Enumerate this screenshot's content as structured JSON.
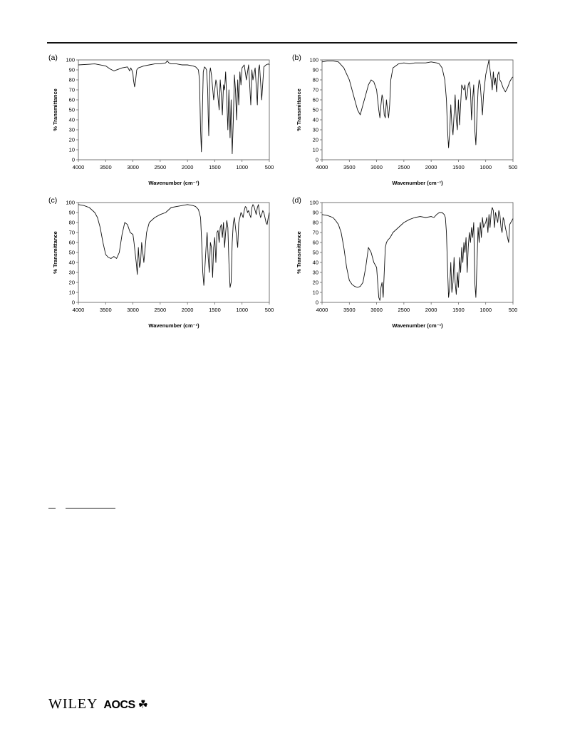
{
  "footer": {
    "publisher": "WILEY",
    "society": "AOCS",
    "society_symbol": "☘"
  },
  "chart_data": [
    {
      "type": "line",
      "panel": "(a)",
      "xlabel": "Wavenumber (cm⁻¹)",
      "ylabel": "% Transmittance",
      "xlim": [
        4000,
        500
      ],
      "ylim": [
        0,
        100
      ],
      "x_reversed": true,
      "xticks": [
        4000,
        3500,
        3000,
        2500,
        2000,
        1500,
        1000,
        500
      ],
      "yticks": [
        0,
        10,
        20,
        30,
        40,
        50,
        60,
        70,
        80,
        90,
        100
      ],
      "grid": false,
      "legend": "none",
      "series": [
        {
          "x": [
            4000,
            3700,
            3500,
            3420,
            3350,
            3200,
            3100,
            3060,
            3040,
            3020,
            3000,
            2990,
            2970,
            2950,
            2930,
            2900,
            2850,
            2800,
            2700,
            2600,
            2500,
            2400,
            2370,
            2340,
            2300,
            2200,
            2100,
            2000,
            1900,
            1850,
            1800,
            1780,
            1760,
            1745,
            1730,
            1710,
            1690,
            1670,
            1650,
            1630,
            1620,
            1610,
            1600,
            1590,
            1580,
            1560,
            1520,
            1500,
            1480,
            1460,
            1440,
            1420,
            1400,
            1380,
            1360,
            1340,
            1320,
            1300,
            1280,
            1260,
            1240,
            1220,
            1200,
            1180,
            1160,
            1140,
            1120,
            1100,
            1080,
            1060,
            1040,
            1020,
            1000,
            960,
            920,
            880,
            840,
            820,
            800,
            760,
            720,
            700,
            680,
            640,
            600,
            560,
            520,
            500
          ],
          "y": [
            95,
            96,
            94,
            91,
            89,
            92,
            93,
            89,
            92,
            90,
            86,
            80,
            73,
            80,
            90,
            92,
            93,
            94,
            95,
            96,
            96,
            97,
            99,
            97,
            96,
            96,
            95,
            95,
            94,
            93,
            90,
            80,
            30,
            8,
            40,
            88,
            93,
            92,
            90,
            70,
            45,
            24,
            60,
            88,
            92,
            85,
            60,
            70,
            80,
            75,
            62,
            50,
            80,
            65,
            45,
            75,
            70,
            88,
            60,
            30,
            70,
            22,
            60,
            6,
            40,
            85,
            70,
            40,
            80,
            55,
            88,
            75,
            92,
            95,
            80,
            95,
            55,
            90,
            80,
            92,
            55,
            90,
            95,
            60,
            93,
            95,
            96,
            95
          ]
        }
      ]
    },
    {
      "type": "line",
      "panel": "(b)",
      "xlabel": "Wavenumber (cm⁻¹)",
      "ylabel": "% Transmittance",
      "xlim": [
        4000,
        500
      ],
      "ylim": [
        0,
        100
      ],
      "x_reversed": true,
      "xticks": [
        4000,
        3500,
        3000,
        2500,
        2000,
        1500,
        1000,
        500
      ],
      "yticks": [
        0,
        10,
        20,
        30,
        40,
        50,
        60,
        70,
        80,
        90,
        100
      ],
      "grid": false,
      "legend": "none",
      "series": [
        {
          "x": [
            4000,
            3900,
            3800,
            3700,
            3600,
            3500,
            3450,
            3400,
            3350,
            3300,
            3250,
            3200,
            3150,
            3100,
            3050,
            3000,
            2980,
            2960,
            2940,
            2920,
            2900,
            2880,
            2860,
            2840,
            2820,
            2800,
            2780,
            2760,
            2740,
            2700,
            2600,
            2500,
            2400,
            2300,
            2200,
            2100,
            2000,
            1900,
            1850,
            1800,
            1750,
            1720,
            1700,
            1680,
            1660,
            1640,
            1620,
            1600,
            1580,
            1560,
            1540,
            1520,
            1500,
            1480,
            1460,
            1440,
            1420,
            1400,
            1380,
            1360,
            1340,
            1320,
            1300,
            1280,
            1260,
            1240,
            1220,
            1200,
            1180,
            1160,
            1140,
            1120,
            1100,
            1080,
            1060,
            1040,
            1020,
            1000,
            980,
            960,
            940,
            920,
            900,
            880,
            860,
            840,
            820,
            800,
            780,
            760,
            740,
            720,
            700,
            680,
            660,
            640,
            620,
            600,
            580,
            560,
            540,
            520,
            500
          ],
          "y": [
            98,
            99,
            99,
            98,
            92,
            80,
            70,
            60,
            50,
            45,
            55,
            65,
            75,
            80,
            78,
            70,
            60,
            50,
            42,
            55,
            65,
            60,
            45,
            42,
            60,
            50,
            42,
            55,
            80,
            92,
            96,
            97,
            96,
            97,
            97,
            97,
            98,
            97,
            96,
            92,
            80,
            60,
            30,
            12,
            28,
            55,
            35,
            25,
            45,
            65,
            40,
            30,
            60,
            35,
            55,
            75,
            72,
            70,
            75,
            60,
            65,
            75,
            78,
            70,
            40,
            60,
            75,
            30,
            15,
            45,
            70,
            80,
            75,
            60,
            45,
            65,
            75,
            85,
            90,
            95,
            100,
            90,
            80,
            70,
            88,
            75,
            82,
            68,
            85,
            88,
            80,
            78,
            75,
            72,
            70,
            68,
            70,
            72,
            75,
            78,
            80,
            82,
            83
          ]
        }
      ]
    },
    {
      "type": "line",
      "panel": "(c)",
      "xlabel": "Wavenumber (cm⁻¹)",
      "ylabel": "% Transmittance",
      "xlim": [
        4000,
        500
      ],
      "ylim": [
        0,
        100
      ],
      "x_reversed": true,
      "xticks": [
        4000,
        3500,
        3000,
        2500,
        2000,
        1500,
        1000,
        500
      ],
      "yticks": [
        0,
        10,
        20,
        30,
        40,
        50,
        60,
        70,
        80,
        90,
        100
      ],
      "grid": false,
      "legend": "none",
      "series": [
        {
          "x": [
            4000,
            3900,
            3800,
            3700,
            3650,
            3600,
            3550,
            3500,
            3450,
            3400,
            3350,
            3300,
            3250,
            3200,
            3150,
            3100,
            3050,
            3000,
            2980,
            2960,
            2940,
            2920,
            2900,
            2880,
            2860,
            2840,
            2820,
            2800,
            2750,
            2700,
            2600,
            2500,
            2400,
            2300,
            2200,
            2100,
            2000,
            1900,
            1850,
            1800,
            1760,
            1740,
            1720,
            1700,
            1680,
            1660,
            1640,
            1620,
            1600,
            1580,
            1560,
            1540,
            1520,
            1500,
            1480,
            1460,
            1440,
            1420,
            1400,
            1380,
            1360,
            1340,
            1320,
            1300,
            1280,
            1260,
            1240,
            1220,
            1200,
            1180,
            1160,
            1140,
            1120,
            1100,
            1080,
            1060,
            1040,
            1020,
            1000,
            980,
            960,
            940,
            920,
            900,
            880,
            860,
            840,
            820,
            800,
            780,
            760,
            740,
            720,
            700,
            680,
            660,
            640,
            620,
            600,
            580,
            560,
            540,
            520,
            500
          ],
          "y": [
            98,
            97,
            95,
            90,
            85,
            75,
            60,
            48,
            45,
            44,
            46,
            44,
            50,
            68,
            80,
            78,
            70,
            68,
            60,
            50,
            40,
            28,
            55,
            35,
            40,
            60,
            50,
            40,
            70,
            80,
            85,
            88,
            90,
            95,
            96,
            97,
            98,
            97,
            96,
            93,
            85,
            60,
            30,
            17,
            35,
            55,
            70,
            45,
            30,
            60,
            55,
            25,
            55,
            65,
            40,
            70,
            72,
            60,
            75,
            78,
            65,
            80,
            55,
            70,
            82,
            75,
            40,
            15,
            20,
            60,
            80,
            85,
            75,
            65,
            55,
            80,
            85,
            90,
            88,
            85,
            92,
            96,
            95,
            90,
            92,
            88,
            85,
            95,
            98,
            96,
            92,
            88,
            95,
            98,
            90,
            85,
            88,
            92,
            90,
            85,
            80,
            78,
            85,
            90
          ]
        }
      ]
    },
    {
      "type": "line",
      "panel": "(d)",
      "xlabel": "Wavenumber (cm⁻¹)",
      "ylabel": "% Transmittance",
      "xlim": [
        4000,
        500
      ],
      "ylim": [
        0,
        100
      ],
      "x_reversed": true,
      "xticks": [
        4000,
        3500,
        3000,
        2500,
        2000,
        1500,
        1000,
        500
      ],
      "yticks": [
        0,
        10,
        20,
        30,
        40,
        50,
        60,
        70,
        80,
        90,
        100
      ],
      "grid": false,
      "legend": "none",
      "series": [
        {
          "x": [
            4000,
            3900,
            3800,
            3750,
            3700,
            3650,
            3600,
            3550,
            3500,
            3450,
            3400,
            3350,
            3300,
            3250,
            3200,
            3150,
            3100,
            3050,
            3000,
            2980,
            2960,
            2940,
            2920,
            2900,
            2880,
            2860,
            2840,
            2820,
            2800,
            2750,
            2700,
            2600,
            2500,
            2400,
            2300,
            2200,
            2100,
            2000,
            1950,
            1900,
            1850,
            1800,
            1760,
            1740,
            1720,
            1700,
            1680,
            1660,
            1640,
            1620,
            1600,
            1580,
            1560,
            1540,
            1520,
            1500,
            1480,
            1460,
            1440,
            1420,
            1400,
            1380,
            1360,
            1340,
            1320,
            1300,
            1280,
            1260,
            1240,
            1220,
            1200,
            1180,
            1160,
            1140,
            1120,
            1100,
            1080,
            1060,
            1040,
            1020,
            1000,
            980,
            960,
            940,
            920,
            900,
            880,
            860,
            840,
            820,
            800,
            780,
            760,
            740,
            720,
            700,
            680,
            660,
            640,
            620,
            600,
            580,
            560,
            540,
            520,
            500
          ],
          "y": [
            88,
            87,
            85,
            82,
            78,
            70,
            55,
            35,
            22,
            18,
            16,
            15,
            16,
            20,
            35,
            55,
            50,
            40,
            35,
            20,
            5,
            2,
            15,
            20,
            5,
            30,
            55,
            60,
            62,
            65,
            70,
            75,
            80,
            83,
            85,
            86,
            85,
            86,
            85,
            88,
            90,
            90,
            88,
            85,
            70,
            35,
            5,
            15,
            40,
            10,
            20,
            45,
            20,
            8,
            30,
            15,
            45,
            30,
            55,
            40,
            60,
            50,
            65,
            30,
            55,
            70,
            60,
            75,
            65,
            80,
            20,
            5,
            40,
            75,
            60,
            80,
            65,
            85,
            75,
            78,
            80,
            85,
            70,
            88,
            75,
            90,
            95,
            92,
            75,
            90,
            85,
            80,
            92,
            88,
            75,
            70,
            85,
            82,
            75,
            70,
            65,
            60,
            78,
            80,
            82,
            84
          ]
        }
      ]
    }
  ]
}
